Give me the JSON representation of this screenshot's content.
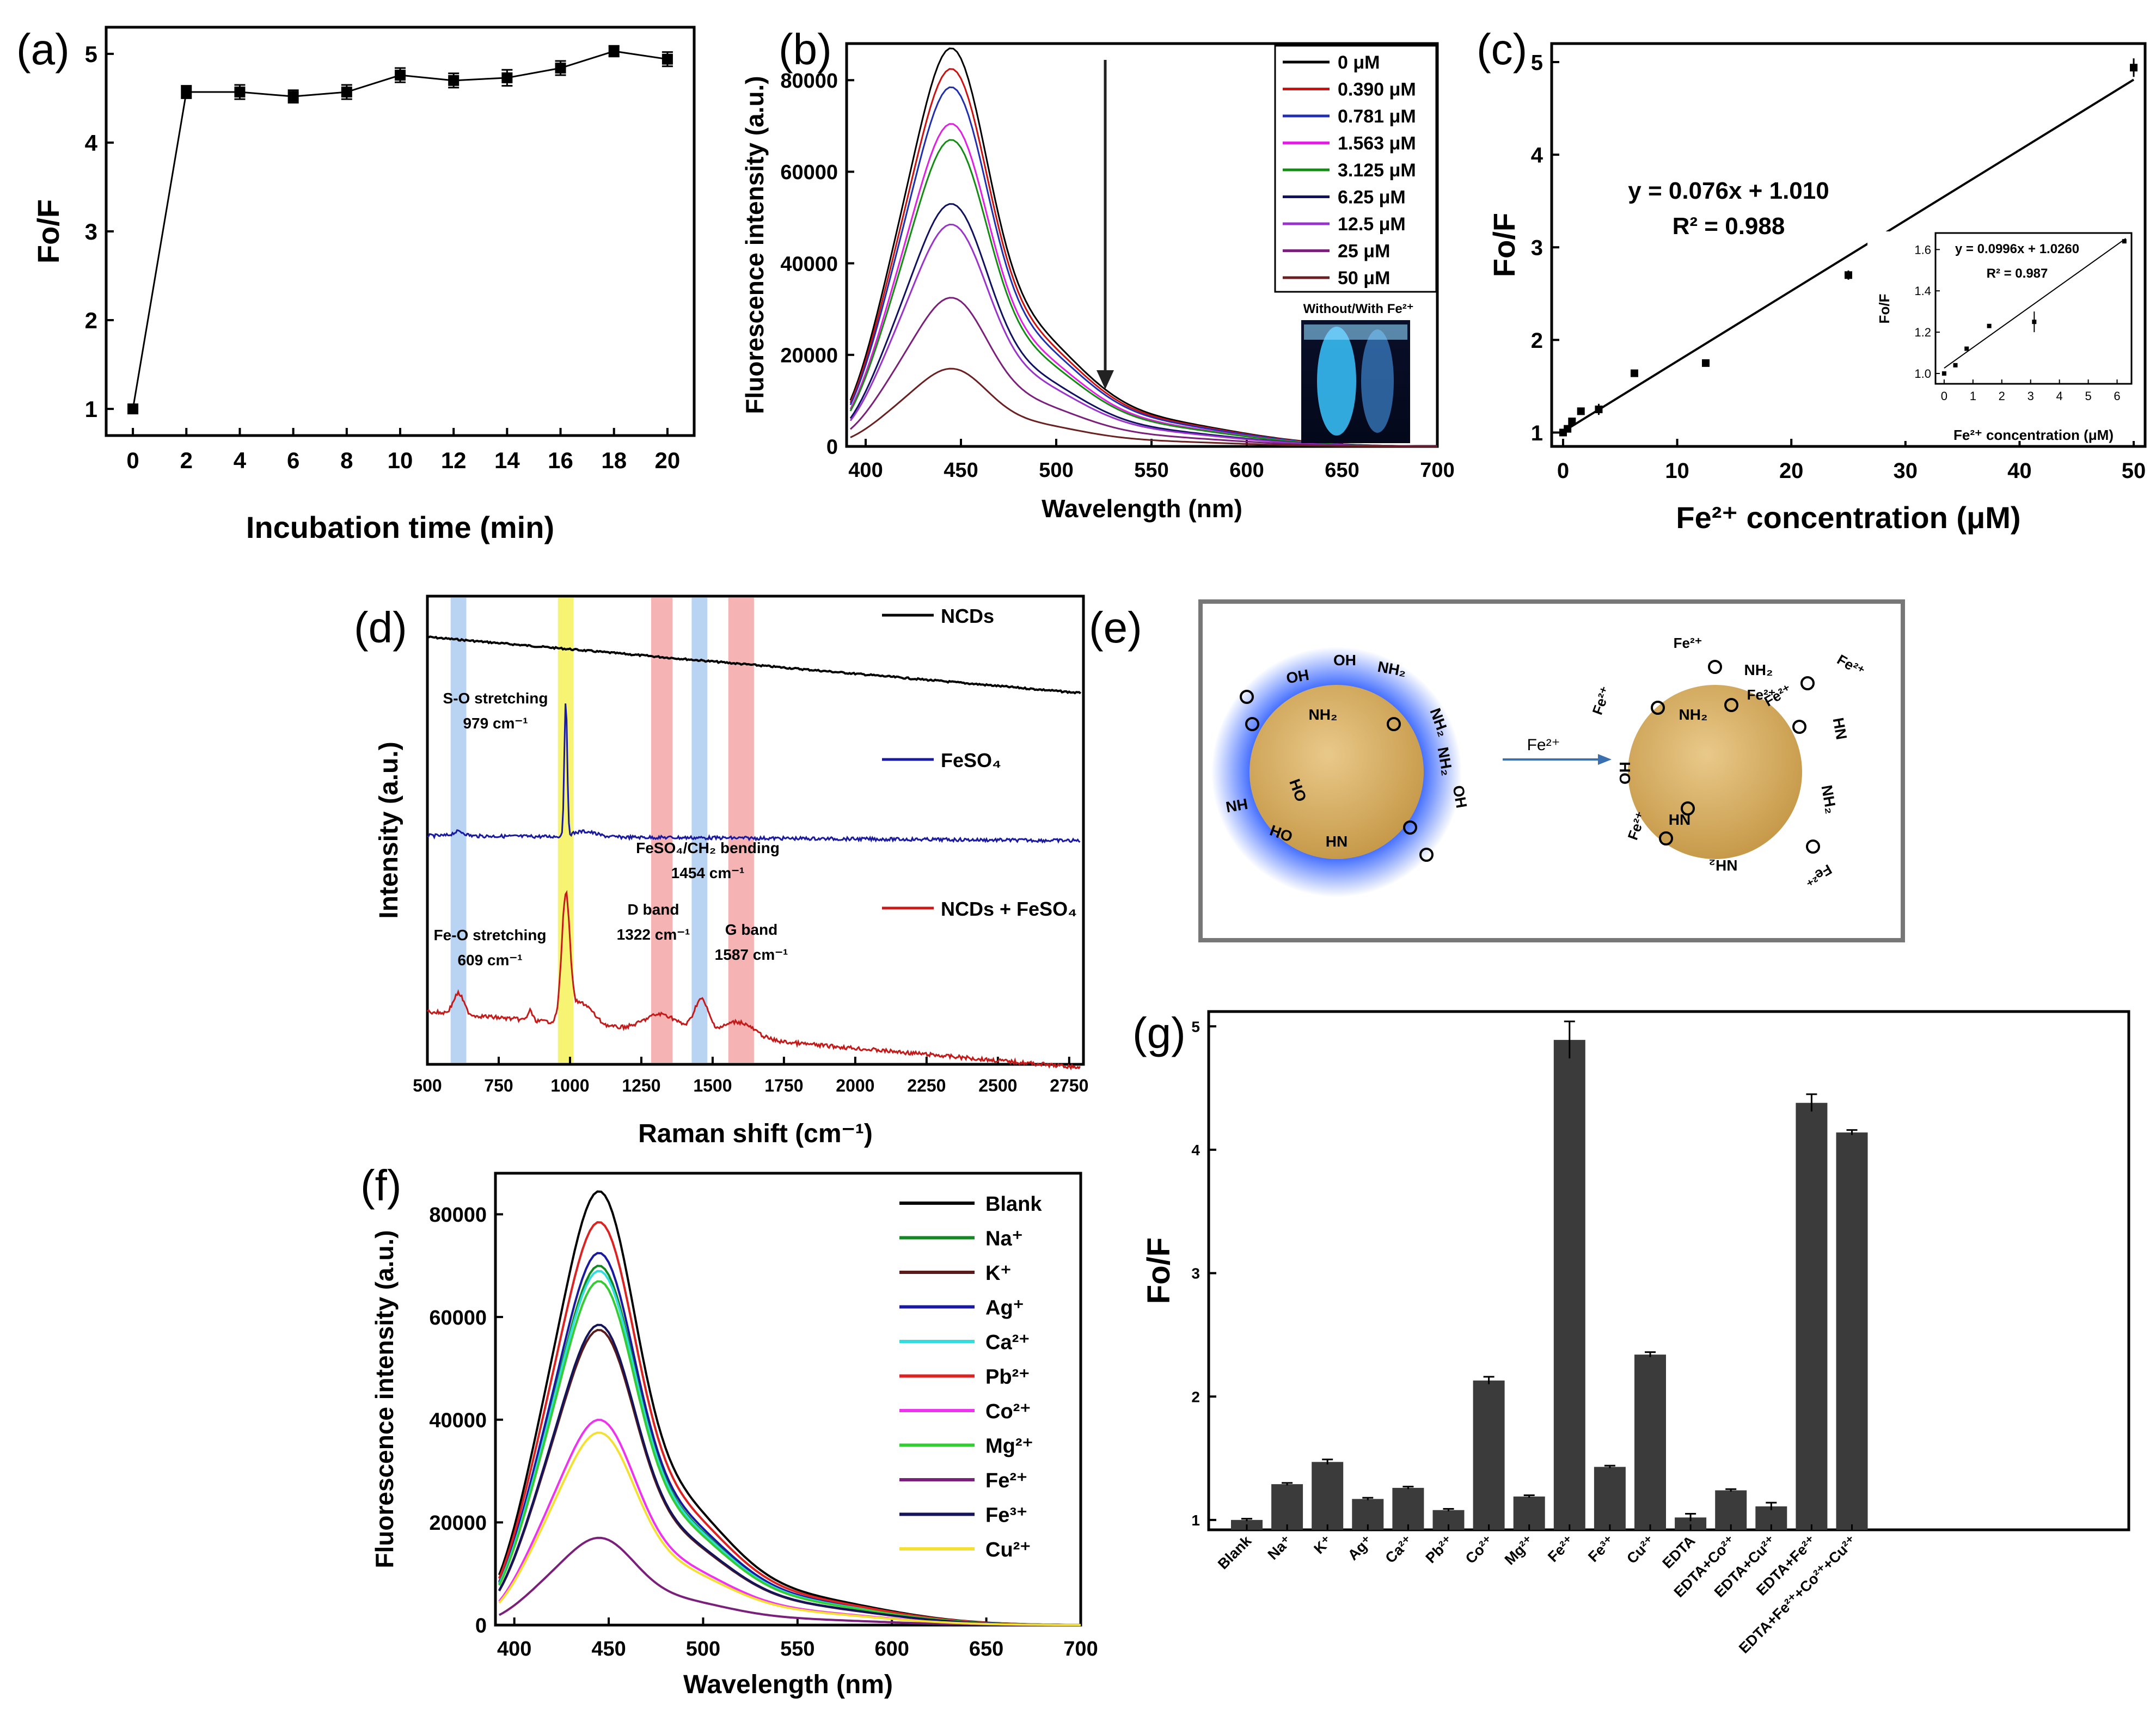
{
  "figure": {
    "panel_labels": {
      "a": "(a)",
      "b": "(b)",
      "c": "(c)",
      "d": "(d)",
      "e": "(e)",
      "f": "(f)",
      "g": "(g)"
    }
  },
  "chart_data": [
    {
      "id": "a",
      "type": "line",
      "title": "",
      "xlabel": "Incubation time (min)",
      "ylabel": "Fo/F",
      "x": [
        0,
        2,
        4,
        6,
        8,
        10,
        12,
        14,
        16,
        18,
        20
      ],
      "y": [
        1.0,
        4.57,
        4.57,
        4.52,
        4.57,
        4.76,
        4.7,
        4.73,
        4.84,
        5.03,
        4.94
      ],
      "err": [
        0,
        0.07,
        0.08,
        0.07,
        0.08,
        0.08,
        0.08,
        0.09,
        0.08,
        0.06,
        0.08
      ],
      "xlim": [
        -1,
        21
      ],
      "ylim": [
        0.7,
        5.3
      ],
      "xticks": [
        "0",
        "2",
        "4",
        "6",
        "8",
        "10",
        "12",
        "14",
        "16",
        "18",
        "20"
      ],
      "yticks": [
        "1",
        "2",
        "3",
        "4",
        "5"
      ]
    },
    {
      "id": "b",
      "type": "line",
      "xlabel": "Wavelength (nm)",
      "ylabel": "Fluorescence intensity (a.u.)",
      "xlim": [
        390,
        700
      ],
      "ylim": [
        0,
        87000
      ],
      "xticks": [
        "400",
        "450",
        "500",
        "550",
        "600",
        "650",
        "700"
      ],
      "yticks": [
        "0",
        "20000",
        "40000",
        "60000",
        "80000"
      ],
      "series": [
        {
          "name": "0 μM",
          "peak": 87000,
          "color": "#000000"
        },
        {
          "name": "0.390 μM",
          "peak": 82500,
          "color": "#cc1111"
        },
        {
          "name": "0.781 μM",
          "peak": 78500,
          "color": "#1f2fb0"
        },
        {
          "name": "1.563 μM",
          "peak": 70500,
          "color": "#e020e0"
        },
        {
          "name": "3.125 μM",
          "peak": 67000,
          "color": "#148c14"
        },
        {
          "name": "6.25 μM",
          "peak": 53000,
          "color": "#101060"
        },
        {
          "name": "12.5 μM",
          "peak": 48500,
          "color": "#9933cc"
        },
        {
          "name": "25 μM",
          "peak": 32500,
          "color": "#7a1f7a"
        },
        {
          "name": "50 μM",
          "peak": 17000,
          "color": "#6a2020"
        }
      ],
      "inset_caption": "Without/With Fe²⁺"
    },
    {
      "id": "c",
      "type": "scatter",
      "xlabel": "Fe²⁺ concentration (μM)",
      "ylabel": "Fo/F",
      "x": [
        0,
        0.39,
        0.781,
        1.563,
        3.125,
        6.25,
        12.5,
        25,
        50
      ],
      "y": [
        1.0,
        1.04,
        1.12,
        1.23,
        1.25,
        1.64,
        1.75,
        2.7,
        4.94
      ],
      "err": [
        0,
        0,
        0,
        0,
        0.06,
        0,
        0,
        0.05,
        0.1
      ],
      "xlim": [
        -1,
        51
      ],
      "ylim": [
        0.85,
        5.2
      ],
      "xticks": [
        "0",
        "10",
        "20",
        "30",
        "40",
        "50"
      ],
      "yticks": [
        "1",
        "2",
        "3",
        "4",
        "5"
      ],
      "fit": {
        "slope": 0.076,
        "intercept": 1.01
      },
      "equation": "y = 0.076x + 1.010",
      "r2_label": "R² = 0.988",
      "inset": {
        "xlabel": "Fe²⁺ concentration (μM)",
        "ylabel": "Fo/F",
        "equation": "y = 0.0996x + 1.0260",
        "r2_label": "R² = 0.987",
        "x": [
          0,
          0.39,
          0.781,
          1.563,
          3.125,
          6.25
        ],
        "y": [
          1.0,
          1.04,
          1.12,
          1.23,
          1.25,
          1.64
        ],
        "err": [
          0,
          0,
          0,
          0,
          0.05,
          0
        ],
        "xlim": [
          -0.3,
          6.5
        ],
        "ylim": [
          0.95,
          1.68
        ],
        "xticks": [
          "0",
          "1",
          "2",
          "3",
          "4",
          "5",
          "6"
        ],
        "yticks": [
          "1.0",
          "1.2",
          "1.4",
          "1.6"
        ],
        "fit": {
          "slope": 0.0996,
          "intercept": 1.026
        }
      }
    },
    {
      "id": "d",
      "type": "line",
      "xlabel": "Raman shift (cm⁻¹)",
      "ylabel": "Intensity (a.u.)",
      "xlim": [
        500,
        2800
      ],
      "xticks": [
        "500",
        "750",
        "1000",
        "1250",
        "1500",
        "1750",
        "2000",
        "2250",
        "2500",
        "2750"
      ],
      "series": [
        {
          "name": "NCDs",
          "color": "#000000"
        },
        {
          "name": "FeSO₄",
          "color": "#1a1aa0"
        },
        {
          "name": "NCDs + FeSO₄",
          "color": "#c41a1a"
        }
      ],
      "bands": [
        {
          "center": 609,
          "width": 55,
          "color": "#a8c8f0"
        },
        {
          "center": 985,
          "width": 55,
          "color": "#f5f050"
        },
        {
          "center": 1322,
          "width": 75,
          "color": "#f2a0a0"
        },
        {
          "center": 1454,
          "width": 55,
          "color": "#a8c8f0"
        },
        {
          "center": 1600,
          "width": 90,
          "color": "#f2a0a0"
        }
      ],
      "annotations": [
        {
          "lines": [
            "S-O stretching",
            "979 cm⁻¹"
          ]
        },
        {
          "lines": [
            "FeSO₄/CH₂ bending",
            "1454 cm⁻¹"
          ]
        },
        {
          "lines": [
            "Fe-O stretching",
            "609 cm⁻¹"
          ]
        },
        {
          "lines": [
            "D band",
            "1322 cm⁻¹"
          ]
        },
        {
          "lines": [
            "G band",
            "1587 cm⁻¹"
          ]
        }
      ]
    },
    {
      "id": "e",
      "type": "diagram",
      "arrow_label": "Fe²⁺",
      "groups": [
        "OH",
        "OH",
        "NH₂",
        "NH₂",
        "NH₂",
        "HN",
        "HO",
        "HO",
        "NH₂",
        "HN",
        "OH",
        "NH₂",
        "NH₂",
        "HN",
        "HO",
        "HN"
      ],
      "ions": [
        "Fe²⁺",
        "Fe²⁺",
        "Fe²⁺",
        "Fe²⁺",
        "Fe²⁺",
        "Fe²⁺",
        "Fe²⁺"
      ]
    },
    {
      "id": "f",
      "type": "line",
      "xlabel": "Wavelength (nm)",
      "ylabel": "Fluorescence intensity (a.u.)",
      "xlim": [
        390,
        700
      ],
      "ylim": [
        0,
        87000
      ],
      "xticks": [
        "400",
        "450",
        "500",
        "550",
        "600",
        "650",
        "700"
      ],
      "yticks": [
        "0",
        "20000",
        "40000",
        "60000",
        "80000"
      ],
      "series": [
        {
          "name": "Blank",
          "peak": 84500,
          "color": "#000000"
        },
        {
          "name": "Na⁺",
          "peak": 70000,
          "color": "#118822"
        },
        {
          "name": "K⁺",
          "peak": 57500,
          "color": "#5a1a1a"
        },
        {
          "name": "Ag⁺",
          "peak": 72500,
          "color": "#1a1aa0"
        },
        {
          "name": "Ca²⁺",
          "peak": 69000,
          "color": "#33dddd"
        },
        {
          "name": "Pb²⁺",
          "peak": 78500,
          "color": "#dd2222"
        },
        {
          "name": "Co²⁺",
          "peak": 40000,
          "color": "#ee33ee"
        },
        {
          "name": "Mg²⁺",
          "peak": 67000,
          "color": "#33cc33"
        },
        {
          "name": "Fe²⁺",
          "peak": 17000,
          "color": "#7a1f7a"
        },
        {
          "name": "Fe³⁺",
          "peak": 58500,
          "color": "#14145a"
        },
        {
          "name": "Cu²⁺",
          "peak": 37500,
          "color": "#f4e030"
        }
      ]
    },
    {
      "id": "g",
      "type": "bar",
      "ylabel": "Fo/F",
      "ylim": [
        0.92,
        5.12
      ],
      "yticks": [
        "1",
        "2",
        "3",
        "4",
        "5"
      ],
      "categories": [
        "Blank",
        "Na⁺",
        "K⁺",
        "Ag⁺",
        "Ca²⁺",
        "Pb²⁺",
        "Co²⁺",
        "Mg²⁺",
        "Fe²⁺",
        "Fe³⁺",
        "Cu²⁺",
        "EDTA",
        "EDTA+Co²⁺",
        "EDTA+Cu²⁺",
        "EDTA+Fe²⁺",
        "EDTA+Fe²⁺+Co²⁺+Cu²⁺"
      ],
      "values": [
        1.0,
        1.29,
        1.47,
        1.17,
        1.26,
        1.08,
        2.13,
        1.19,
        4.89,
        1.43,
        2.34,
        1.02,
        1.24,
        1.11,
        4.38,
        4.14
      ],
      "errors": [
        0.01,
        0.01,
        0.02,
        0.01,
        0.01,
        0.01,
        0.03,
        0.01,
        0.15,
        0.01,
        0.02,
        0.03,
        0.01,
        0.03,
        0.07,
        0.02
      ]
    }
  ]
}
